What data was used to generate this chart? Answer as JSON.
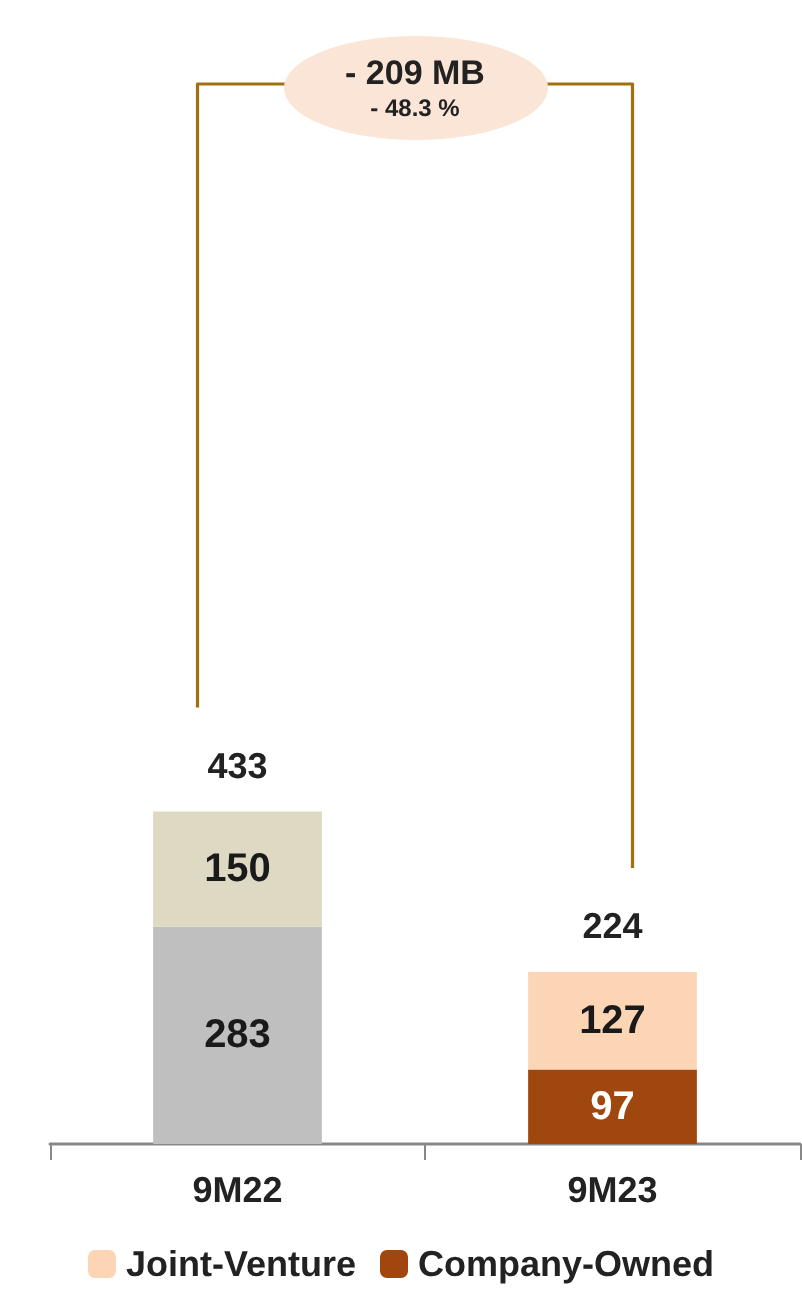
{
  "chart_data": {
    "type": "bar",
    "stacked": true,
    "categories": [
      "9M22",
      "9M23"
    ],
    "series": [
      {
        "name": "Company-Owned",
        "color": "#a0460f",
        "colors": [
          "#bfbfbf",
          "#a0460f"
        ],
        "values": [
          283,
          97
        ]
      },
      {
        "name": "Joint-Venture",
        "color": "#fcd5b5",
        "colors": [
          "#ddd9c3",
          "#fcd5b5"
        ],
        "values": [
          150,
          127
        ]
      }
    ],
    "data_labels": true,
    "totals": [
      "433",
      "224"
    ],
    "legend": "bottom",
    "annotations": [
      "- 209 MB",
      "- 48.3 %"
    ]
  }
}
